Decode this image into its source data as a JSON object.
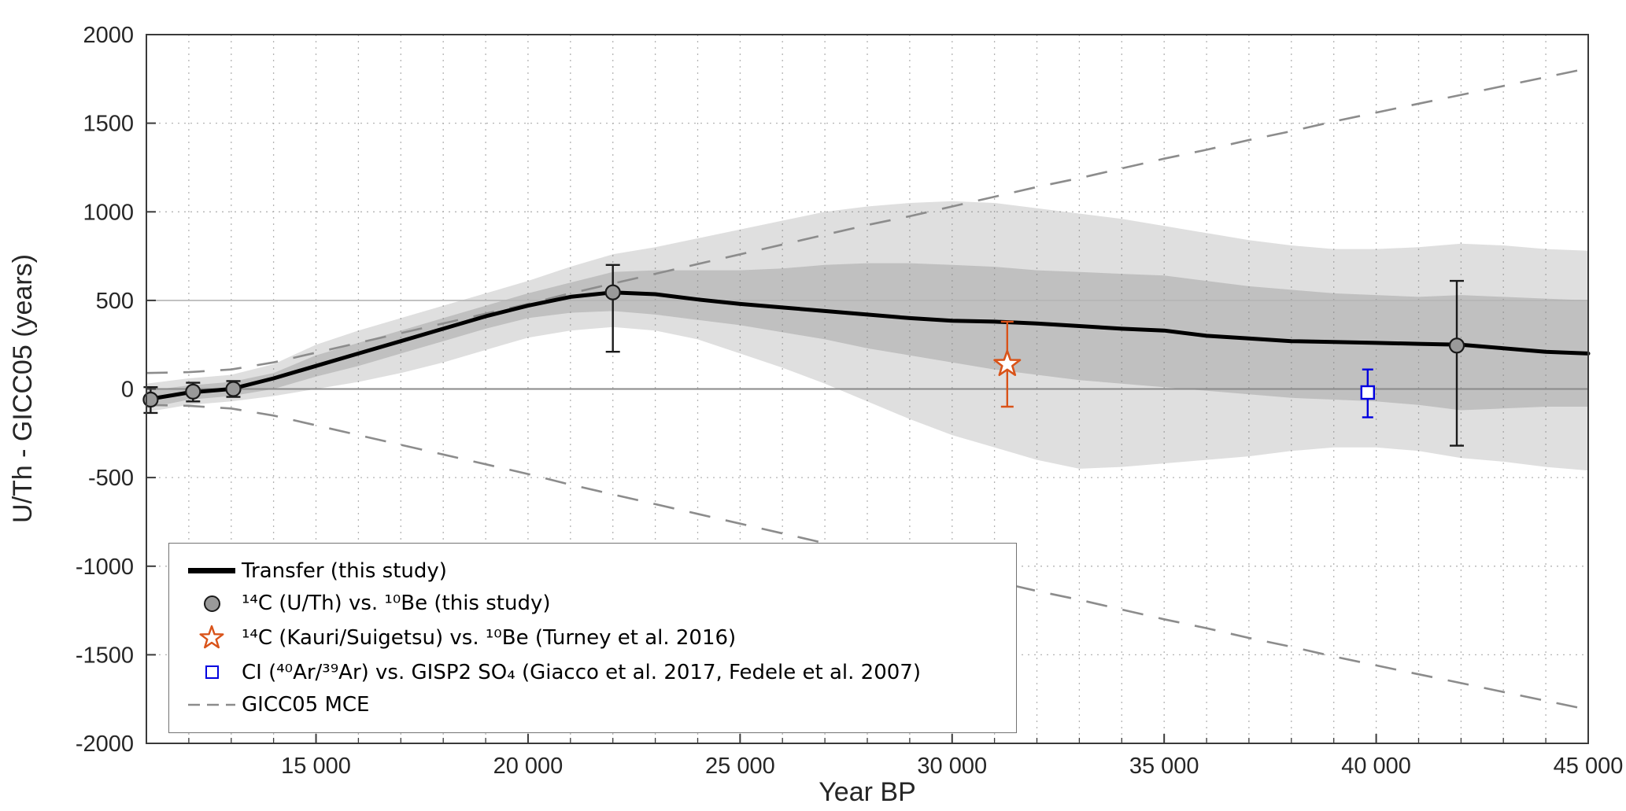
{
  "legend": {
    "items": [
      {
        "marker": "thick-black-line",
        "label": "Transfer (this study)"
      },
      {
        "marker": "gray-filled-circle",
        "label": "¹⁴C (U/Th) vs. ¹⁰Be (this study)"
      },
      {
        "marker": "red-open-star",
        "label": "¹⁴C (Kauri/Suigetsu) vs. ¹⁰Be (Turney et al. 2016)"
      },
      {
        "marker": "blue-open-square",
        "label": "CI (⁴⁰Ar/³⁹Ar) vs. GISP2 SO₄ (Giacco et al. 2017, Fedele et al. 2007)"
      },
      {
        "marker": "gray-dashed-line",
        "label": "GICC05 MCE"
      }
    ]
  },
  "chart_data": {
    "type": "line",
    "title": "",
    "xlabel": "Year BP",
    "ylabel": "U/Th - GICC05 (years)",
    "xlim": [
      11000,
      45000
    ],
    "ylim": [
      -2000,
      2000
    ],
    "x_ticks": [
      15000,
      20000,
      25000,
      30000,
      35000,
      40000,
      45000
    ],
    "x_tick_labels": [
      "15 000",
      "20 000",
      "25 000",
      "30 000",
      "35 000",
      "40 000",
      "45 000"
    ],
    "x_minor_step": 1000,
    "y_ticks": [
      -2000,
      -1500,
      -1000,
      -500,
      0,
      500,
      1000,
      1500,
      2000
    ],
    "y_tick_labels": [
      "-2000",
      "-1500",
      "-1000",
      "-500",
      "0",
      "500",
      "1000",
      "1500",
      "2000"
    ],
    "grid": "dotted",
    "legend_position": "southwest",
    "reference_lines_y": [
      0,
      500
    ],
    "bands": {
      "outer_opacity": 0.25,
      "inner_opacity": 0.32,
      "outer": {
        "x": [
          11000,
          12000,
          13000,
          14000,
          15000,
          16000,
          17000,
          18000,
          19000,
          20000,
          21000,
          22000,
          23000,
          24000,
          25000,
          26000,
          27000,
          28000,
          29000,
          30000,
          31000,
          32000,
          33000,
          34000,
          35000,
          36000,
          37000,
          38000,
          39000,
          40000,
          41000,
          42000,
          43000,
          44000,
          45000
        ],
        "hi": [
          30,
          60,
          80,
          140,
          250,
          330,
          400,
          470,
          540,
          610,
          690,
          760,
          800,
          850,
          900,
          950,
          1000,
          1030,
          1050,
          1060,
          1050,
          1020,
          990,
          960,
          920,
          880,
          840,
          810,
          790,
          790,
          800,
          820,
          810,
          790,
          780
        ],
        "lo": [
          -130,
          -90,
          -70,
          -40,
          0,
          40,
          90,
          150,
          220,
          290,
          330,
          350,
          330,
          280,
          200,
          120,
          30,
          -70,
          -170,
          -260,
          -330,
          -400,
          -450,
          -440,
          -420,
          -400,
          -380,
          -350,
          -330,
          -330,
          -350,
          -390,
          -410,
          -440,
          -460
        ]
      },
      "inner": {
        "x": [
          11000,
          12000,
          13000,
          14000,
          15000,
          16000,
          17000,
          18000,
          19000,
          20000,
          21000,
          22000,
          23000,
          24000,
          25000,
          26000,
          27000,
          28000,
          29000,
          30000,
          31000,
          32000,
          33000,
          34000,
          35000,
          36000,
          37000,
          38000,
          39000,
          40000,
          41000,
          42000,
          43000,
          44000,
          45000
        ],
        "hi": [
          -10,
          20,
          40,
          90,
          190,
          260,
          330,
          400,
          470,
          540,
          600,
          660,
          670,
          670,
          670,
          680,
          700,
          710,
          710,
          700,
          690,
          670,
          660,
          650,
          640,
          610,
          580,
          560,
          540,
          530,
          520,
          530,
          520,
          510,
          500
        ],
        "lo": [
          -110,
          -60,
          -40,
          0,
          70,
          130,
          200,
          270,
          340,
          400,
          430,
          440,
          420,
          390,
          360,
          320,
          280,
          230,
          190,
          150,
          110,
          80,
          50,
          30,
          10,
          -10,
          -30,
          -50,
          -60,
          -70,
          -90,
          -120,
          -110,
          -100,
          -100
        ]
      }
    },
    "series": {
      "transfer": {
        "name": "Transfer (this study)",
        "x": [
          11000,
          12000,
          13000,
          14000,
          15000,
          16000,
          17000,
          18000,
          19000,
          20000,
          21000,
          22000,
          23000,
          24000,
          25000,
          26000,
          27000,
          28000,
          29000,
          30000,
          31000,
          32000,
          33000,
          34000,
          35000,
          36000,
          37000,
          38000,
          39000,
          40000,
          41000,
          42000,
          43000,
          44000,
          45000
        ],
        "y": [
          -60,
          -20,
          0,
          60,
          130,
          200,
          270,
          340,
          410,
          470,
          520,
          545,
          535,
          505,
          480,
          460,
          440,
          420,
          400,
          385,
          380,
          370,
          355,
          340,
          330,
          300,
          285,
          270,
          265,
          260,
          255,
          250,
          230,
          210,
          200
        ]
      },
      "mce": {
        "name": "GICC05 MCE",
        "x": [
          11000,
          12000,
          13000,
          14000,
          15000,
          16000,
          17000,
          18000,
          19000,
          20000,
          21000,
          22000,
          23000,
          24000,
          25000,
          26000,
          27000,
          28000,
          29000,
          30000,
          31000,
          32000,
          33000,
          34000,
          35000,
          36000,
          37000,
          38000,
          39000,
          40000,
          41000,
          42000,
          43000,
          44000,
          45000
        ],
        "upper": [
          90,
          95,
          110,
          150,
          205,
          260,
          315,
          370,
          425,
          480,
          540,
          595,
          650,
          705,
          760,
          815,
          870,
          925,
          975,
          1030,
          1085,
          1140,
          1190,
          1245,
          1300,
          1350,
          1405,
          1455,
          1510,
          1560,
          1610,
          1660,
          1710,
          1760,
          1810
        ],
        "lower": [
          -90,
          -95,
          -110,
          -150,
          -205,
          -260,
          -315,
          -370,
          -425,
          -480,
          -540,
          -595,
          -650,
          -705,
          -760,
          -815,
          -870,
          -925,
          -975,
          -1030,
          -1085,
          -1140,
          -1190,
          -1245,
          -1300,
          -1350,
          -1405,
          -1455,
          -1510,
          -1560,
          -1610,
          -1660,
          -1710,
          -1760,
          -1810
        ]
      },
      "gray_points": [
        {
          "x": 11100,
          "y": -60,
          "lo": -135,
          "hi": 10
        },
        {
          "x": 12100,
          "y": -15,
          "lo": -70,
          "hi": 35
        },
        {
          "x": 13050,
          "y": 0,
          "lo": -45,
          "hi": 45
        },
        {
          "x": 22000,
          "y": 545,
          "lo": 210,
          "hi": 700
        },
        {
          "x": 41900,
          "y": 245,
          "lo": -320,
          "hi": 610
        }
      ],
      "red_star": {
        "x": 31300,
        "y": 140,
        "lo": -100,
        "hi": 380
      },
      "blue_square": {
        "x": 39800,
        "y": -20,
        "lo": -160,
        "hi": 110
      }
    },
    "colors": {
      "transfer": "#000000",
      "band": "#808080",
      "mce": "#8c8c8c",
      "grid": "#b4b4b4",
      "zero_line": "#8a8a8a",
      "ref_line": "#b4b4b4",
      "axis": "#3a3a3a",
      "text": "#262626",
      "gray_marker": "#999999",
      "marker_edge": "#1a1a1a",
      "star": "#d95319",
      "blue": "#0000e0"
    }
  }
}
